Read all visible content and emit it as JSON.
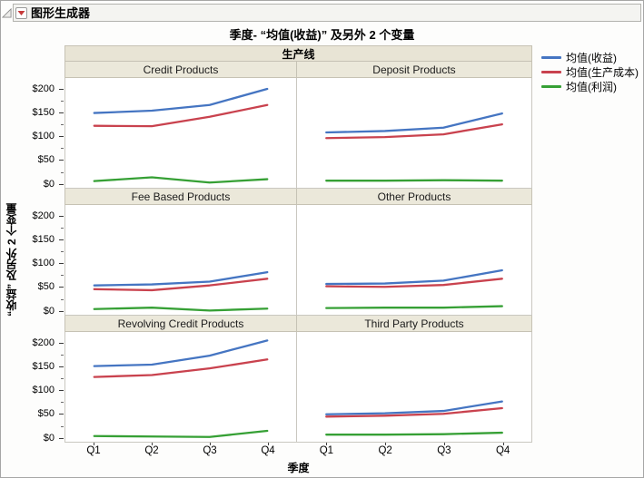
{
  "window": {
    "title": "图形生成器",
    "disclosure_icon": "collapse-triangle",
    "menu_icon": "red-triangle-menu"
  },
  "chart_data": {
    "type": "line",
    "title": "季度- “均值(收益)” 及另外 2 个变量",
    "group_label": "生产线",
    "xlabel": "季度",
    "ylabel": "“收益” 及另外 2 个变量",
    "x": [
      "Q1",
      "Q2",
      "Q3",
      "Q4"
    ],
    "ylim": [
      -10,
      222
    ],
    "yticks": [
      {
        "v": 0,
        "label": "$0"
      },
      {
        "v": 50,
        "label": "$50"
      },
      {
        "v": 100,
        "label": "$100"
      },
      {
        "v": 150,
        "label": "$150"
      },
      {
        "v": 200,
        "label": "$200"
      }
    ],
    "yticks_minor": [
      25,
      75,
      125,
      175
    ],
    "grid": false,
    "legend_position": "right",
    "series": [
      {
        "name": "均值(收益)",
        "color": "#4575c2"
      },
      {
        "name": "均值(生产成本)",
        "color": "#c9424e"
      },
      {
        "name": "均值(利润)",
        "color": "#36a035"
      }
    ],
    "panels": [
      {
        "title": "Credit Products",
        "series_values": [
          [
            148,
            153,
            165,
            199
          ],
          [
            121,
            120,
            140,
            165
          ],
          [
            4,
            12,
            1,
            8
          ]
        ]
      },
      {
        "title": "Deposit Products",
        "series_values": [
          [
            107,
            110,
            117,
            147
          ],
          [
            95,
            97,
            103,
            124
          ],
          [
            5,
            5,
            6,
            5
          ]
        ]
      },
      {
        "title": "Fee Based Products",
        "series_values": [
          [
            52,
            54,
            60,
            80
          ],
          [
            44,
            42,
            52,
            66
          ],
          [
            2,
            5,
            -1,
            3
          ]
        ]
      },
      {
        "title": "Other Products",
        "series_values": [
          [
            55,
            56,
            62,
            84
          ],
          [
            50,
            49,
            53,
            66
          ],
          [
            4,
            5,
            5,
            8
          ]
        ]
      },
      {
        "title": "Revolving Credit Products",
        "series_values": [
          [
            150,
            153,
            172,
            204
          ],
          [
            127,
            131,
            145,
            164
          ],
          [
            2,
            1,
            0,
            13
          ]
        ]
      },
      {
        "title": "Third Party Products",
        "series_values": [
          [
            48,
            50,
            55,
            75
          ],
          [
            43,
            45,
            49,
            61
          ],
          [
            5,
            5,
            6,
            9
          ]
        ]
      }
    ]
  }
}
